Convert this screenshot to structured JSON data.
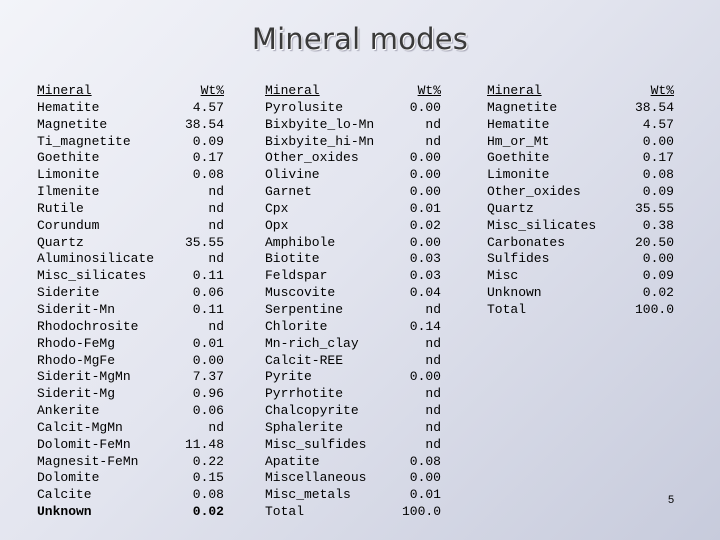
{
  "title": "Mineral modes",
  "tables": [
    {
      "header": {
        "name": "Mineral",
        "value": "Wt%"
      },
      "rows": [
        {
          "name": "Hematite",
          "value": "4.57"
        },
        {
          "name": "Magnetite",
          "value": "38.54"
        },
        {
          "name": "Ti_magnetite",
          "value": "0.09"
        },
        {
          "name": "Goethite",
          "value": "0.17"
        },
        {
          "name": "Limonite",
          "value": "0.08"
        },
        {
          "name": "Ilmenite",
          "value": "nd"
        },
        {
          "name": "Rutile",
          "value": "nd"
        },
        {
          "name": "Corundum",
          "value": "nd"
        },
        {
          "name": "Quartz",
          "value": "35.55"
        },
        {
          "name": "Aluminosilicate",
          "value": "nd"
        },
        {
          "name": "Misc_silicates",
          "value": "0.11"
        },
        {
          "name": "Siderite",
          "value": "0.06"
        },
        {
          "name": "Siderit-Mn",
          "value": "0.11"
        },
        {
          "name": "Rhodochrosite",
          "value": "nd"
        },
        {
          "name": "Rhodo-FeMg",
          "value": "0.01"
        },
        {
          "name": "Rhodo-MgFe",
          "value": "0.00"
        },
        {
          "name": "Siderit-MgMn",
          "value": "7.37"
        },
        {
          "name": "Siderit-Mg",
          "value": "0.96"
        },
        {
          "name": "Ankerite",
          "value": "0.06"
        },
        {
          "name": "Calcit-MgMn",
          "value": "nd"
        },
        {
          "name": "Dolomit-FeMn",
          "value": "11.48"
        },
        {
          "name": "Magnesit-FeMn",
          "value": "0.22"
        },
        {
          "name": "Dolomite",
          "value": "0.15"
        },
        {
          "name": "Calcite",
          "value": "0.08"
        },
        {
          "name": "Unknown",
          "value": "0.02"
        }
      ]
    },
    {
      "header": {
        "name": "Mineral",
        "value": "Wt%"
      },
      "rows": [
        {
          "name": "Pyrolusite",
          "value": "0.00"
        },
        {
          "name": "Bixbyite_lo-Mn",
          "value": "nd"
        },
        {
          "name": "Bixbyite_hi-Mn",
          "value": "nd"
        },
        {
          "name": "Other_oxides",
          "value": "0.00"
        },
        {
          "name": "Olivine",
          "value": "0.00"
        },
        {
          "name": "Garnet",
          "value": "0.00"
        },
        {
          "name": "Cpx",
          "value": "0.01"
        },
        {
          "name": "Opx",
          "value": "0.02"
        },
        {
          "name": "Amphibole",
          "value": "0.00"
        },
        {
          "name": "Biotite",
          "value": "0.03"
        },
        {
          "name": "Feldspar",
          "value": "0.03"
        },
        {
          "name": "Muscovite",
          "value": "0.04"
        },
        {
          "name": "Serpentine",
          "value": "nd"
        },
        {
          "name": "Chlorite",
          "value": "0.14"
        },
        {
          "name": "Mn-rich_clay",
          "value": "nd"
        },
        {
          "name": "Calcit-REE",
          "value": "nd"
        },
        {
          "name": "Pyrite",
          "value": "0.00"
        },
        {
          "name": "Pyrrhotite",
          "value": "nd"
        },
        {
          "name": "Chalcopyrite",
          "value": "nd"
        },
        {
          "name": "Sphalerite",
          "value": "nd"
        },
        {
          "name": "Misc_sulfides",
          "value": "nd"
        },
        {
          "name": "Apatite",
          "value": "0.08"
        },
        {
          "name": "Miscellaneous",
          "value": "0.00"
        },
        {
          "name": "Misc_metals",
          "value": "0.01"
        },
        {
          "name": "Total",
          "value": "100.0"
        }
      ]
    },
    {
      "header": {
        "name": "Mineral",
        "value": "Wt%"
      },
      "rows": [
        {
          "name": "Magnetite",
          "value": "38.54"
        },
        {
          "name": "Hematite",
          "value": "4.57"
        },
        {
          "name": "Hm_or_Mt",
          "value": "0.00"
        },
        {
          "name": "Goethite",
          "value": "0.17"
        },
        {
          "name": "Limonite",
          "value": "0.08"
        },
        {
          "name": "Other_oxides",
          "value": "0.09"
        },
        {
          "name": "Quartz",
          "value": "35.55"
        },
        {
          "name": "Misc_silicates",
          "value": "0.38"
        },
        {
          "name": "Carbonates",
          "value": "20.50"
        },
        {
          "name": "Sulfides",
          "value": "0.00"
        },
        {
          "name": "Misc",
          "value": "0.09"
        },
        {
          "name": "Unknown",
          "value": "0.02"
        },
        {
          "name": "Total",
          "value": "100.0"
        }
      ]
    }
  ],
  "page_number": "5"
}
